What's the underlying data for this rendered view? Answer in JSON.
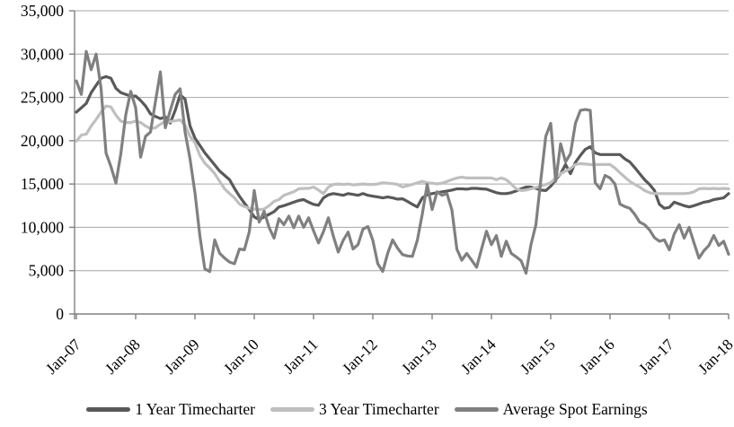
{
  "chart_data": {
    "type": "line",
    "title": "",
    "xlabel": "",
    "ylabel": "",
    "x_frequency": "monthly",
    "x_range": [
      "Jan-07",
      "Jan-18"
    ],
    "x_tick_labels": [
      "Jan-07",
      "Jan-08",
      "Jan-09",
      "Jan-10",
      "Jan-11",
      "Jan-12",
      "Jan-13",
      "Jan-14",
      "Jan-15",
      "Jan-16",
      "Jan-17",
      "Jan-18"
    ],
    "y_ticks": [
      0,
      5000,
      10000,
      15000,
      20000,
      25000,
      30000,
      35000
    ],
    "ylim": [
      0,
      35000
    ],
    "grid": true,
    "legend_position": "bottom",
    "style": {
      "gridline_color": "#a6a6a6",
      "axis_color": "#808080",
      "text_color": "#000000",
      "background_color": "#ffffff"
    },
    "series": [
      {
        "name": "1 Year Timecharter",
        "color": "#595959",
        "values": [
          23300,
          23800,
          24300,
          25550,
          26400,
          27200,
          27400,
          27200,
          26050,
          25550,
          25350,
          25150,
          25150,
          24650,
          24000,
          23100,
          22800,
          22550,
          22750,
          22050,
          23500,
          25300,
          24800,
          21700,
          20300,
          19450,
          18600,
          17900,
          17200,
          16500,
          16000,
          15500,
          14500,
          13600,
          12800,
          12050,
          11200,
          10900,
          11200,
          11500,
          11800,
          12350,
          12500,
          12700,
          12900,
          13100,
          13200,
          12900,
          12650,
          12550,
          13400,
          13750,
          13900,
          13800,
          13700,
          13900,
          13800,
          13700,
          13900,
          13700,
          13600,
          13500,
          13400,
          13500,
          13400,
          13250,
          13300,
          13000,
          12650,
          12350,
          13400,
          13750,
          13900,
          14000,
          14100,
          14200,
          14300,
          14450,
          14450,
          14400,
          14500,
          14500,
          14450,
          14400,
          14200,
          14000,
          13900,
          13900,
          14000,
          14200,
          14450,
          14650,
          14650,
          14500,
          14300,
          14250,
          14750,
          15500,
          16200,
          17250,
          16200,
          17500,
          18300,
          19000,
          19300,
          18600,
          18400,
          18400,
          18400,
          18400,
          18400,
          17900,
          17550,
          16900,
          16200,
          15500,
          14950,
          14250,
          12650,
          12200,
          12300,
          12900,
          12700,
          12500,
          12350,
          12500,
          12700,
          12900,
          13000,
          13200,
          13300,
          13400,
          13900
        ]
      },
      {
        "name": "3 Year Timecharter",
        "color": "#bfbfbf",
        "values": [
          19950,
          20650,
          20750,
          21700,
          22450,
          23300,
          24000,
          23900,
          22950,
          22250,
          22100,
          22100,
          22250,
          22100,
          21700,
          21400,
          21500,
          21900,
          22250,
          22200,
          22300,
          22400,
          21800,
          20500,
          19750,
          18300,
          17400,
          16850,
          16200,
          15300,
          14450,
          13900,
          13400,
          12700,
          12400,
          12200,
          12100,
          12050,
          12100,
          12500,
          13000,
          13200,
          13700,
          13900,
          14100,
          14450,
          14500,
          14500,
          14650,
          14300,
          13900,
          14650,
          14950,
          15000,
          14950,
          15000,
          14900,
          14950,
          15000,
          14950,
          14950,
          15000,
          15150,
          15100,
          15050,
          14950,
          14650,
          14800,
          14950,
          15150,
          15300,
          15150,
          15100,
          15000,
          15100,
          15300,
          15500,
          15700,
          15800,
          15700,
          15700,
          15700,
          15700,
          15700,
          15700,
          15500,
          15700,
          15500,
          15000,
          14450,
          14250,
          14300,
          14450,
          14600,
          14750,
          14950,
          15150,
          15700,
          16200,
          16500,
          16800,
          17250,
          17350,
          17300,
          17250,
          17250,
          17250,
          17250,
          17250,
          16850,
          16300,
          15800,
          15300,
          14950,
          14650,
          14250,
          14000,
          13900,
          13900,
          13900,
          13900,
          13900,
          13900,
          13900,
          13950,
          14100,
          14450,
          14500,
          14450,
          14500,
          14450,
          14500,
          14450
        ]
      },
      {
        "name": "Average Spot Earnings",
        "color": "#808080",
        "values": [
          26900,
          25350,
          30300,
          28200,
          30000,
          26000,
          18600,
          17000,
          15100,
          18500,
          23000,
          25700,
          23800,
          18100,
          20500,
          21000,
          24500,
          27950,
          21500,
          23500,
          25350,
          26000,
          21000,
          17900,
          14000,
          9000,
          5200,
          4900,
          8550,
          7000,
          6450,
          6000,
          5800,
          7500,
          7400,
          9500,
          14250,
          10600,
          11850,
          10000,
          8750,
          11000,
          10300,
          11300,
          9950,
          11300,
          10000,
          11100,
          9600,
          8200,
          9500,
          11100,
          9000,
          7150,
          8500,
          9450,
          7500,
          8000,
          9800,
          10100,
          8500,
          5800,
          4900,
          7000,
          8550,
          7600,
          6850,
          6700,
          6650,
          8500,
          11500,
          14950,
          12050,
          14100,
          13700,
          13900,
          12000,
          7500,
          6200,
          7000,
          6200,
          5400,
          7500,
          9550,
          8000,
          9050,
          6650,
          8400,
          7000,
          6600,
          6150,
          4700,
          8000,
          10300,
          15500,
          20500,
          22000,
          15300,
          19650,
          17550,
          18500,
          22000,
          23500,
          23600,
          23500,
          15150,
          14450,
          16000,
          15700,
          15000,
          12700,
          12400,
          12200,
          11500,
          10600,
          10300,
          9700,
          8800,
          8400,
          8550,
          7400,
          9250,
          10300,
          8750,
          10000,
          8200,
          6450,
          7300,
          7900,
          9050,
          7900,
          8400,
          6900
        ]
      }
    ]
  }
}
